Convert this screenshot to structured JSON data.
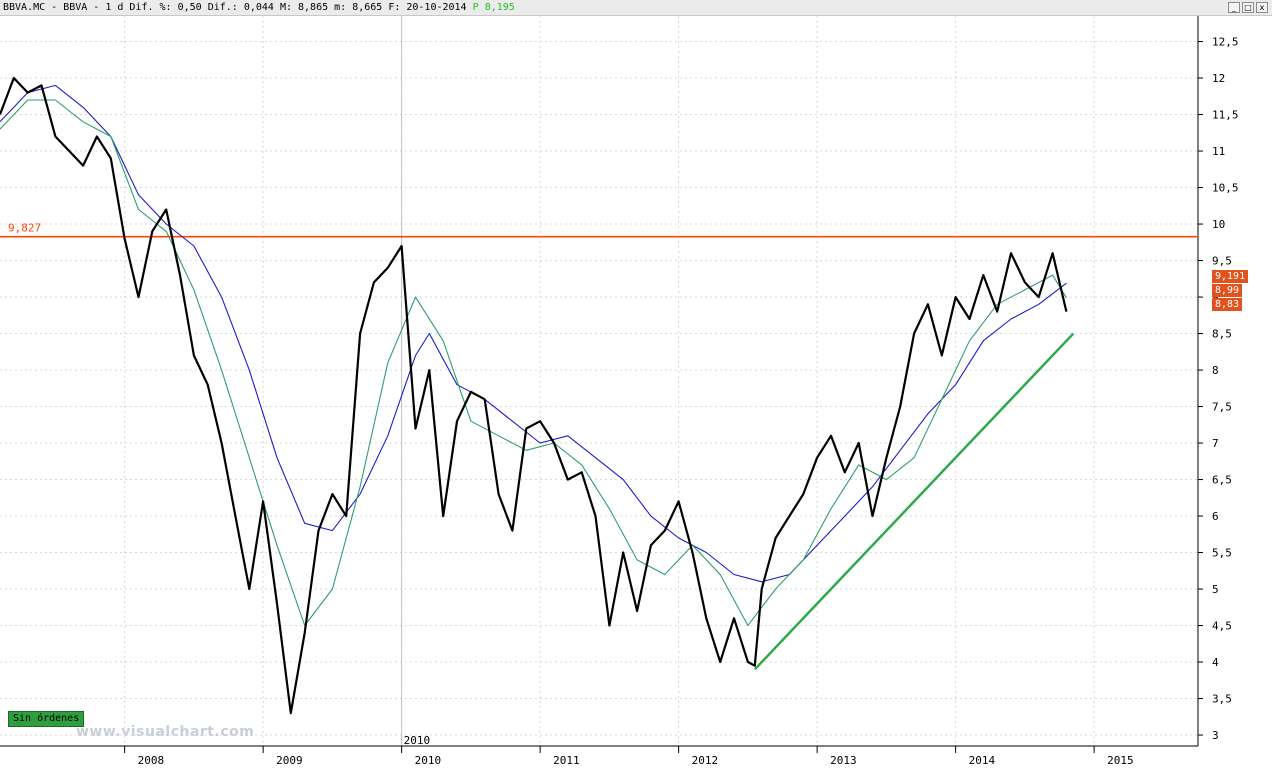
{
  "window": {
    "title_prefix": "BBVA.MC - BBVA -  1 d Dif. %: 0,50 Dif.: 0,044 M: 8,865 m: 8,665 F: 20-10-2014",
    "title_p_label": "P",
    "title_p_value": "8,195",
    "buttons": [
      "_",
      "□",
      "x"
    ]
  },
  "orders_badge": "Sin órdenes",
  "watermark": "www.visualchart.com",
  "price_tags": [
    "9,191",
    "8,99",
    "8,83"
  ],
  "year_marker_label": "2010",
  "colors": {
    "price": "#000000",
    "ma_short": "#2e9e6b",
    "ma_long": "#1c1ccc",
    "resistance": "#ff4400",
    "trendline": "#2eaa4a",
    "tag": "#e0531f"
  },
  "chart_data": {
    "type": "line",
    "title": "BBVA.MC - BBVA - 1 d",
    "x_ticks": [
      "2008",
      "2009",
      "2010",
      "2011",
      "2012",
      "2013",
      "2014",
      "2015"
    ],
    "x_tick_positions": [
      2008,
      2009,
      2010,
      2011,
      2012,
      2013,
      2014,
      2015
    ],
    "xlim": [
      2007.1,
      2015.75
    ],
    "y_ticks": [
      "3",
      "3,5",
      "4",
      "4,5",
      "5",
      "5,5",
      "6",
      "6,5",
      "7",
      "7,5",
      "8",
      "8,5",
      "9",
      "9,5",
      "10",
      "10,5",
      "11",
      "11,5",
      "12",
      "12,5"
    ],
    "y_tick_values": [
      3,
      3.5,
      4,
      4.5,
      5,
      5.5,
      6,
      6.5,
      7,
      7.5,
      8,
      8.5,
      9,
      9.5,
      10,
      10.5,
      11,
      11.5,
      12,
      12.5
    ],
    "ylim": [
      2.85,
      12.85
    ],
    "grid": true,
    "horizontal_line": {
      "value": 9.827,
      "label": "9,827"
    },
    "trendline": {
      "x": [
        2012.55,
        2014.85
      ],
      "y": [
        3.9,
        8.5
      ]
    },
    "series": [
      {
        "x": [
          2007.1,
          2007.2,
          2007.3,
          2007.4,
          2007.5,
          2007.6,
          2007.7,
          2007.8,
          2007.9,
          2008.0,
          2008.1,
          2008.2,
          2008.3,
          2008.4,
          2008.5,
          2008.6,
          2008.7,
          2008.8,
          2008.9,
          2009.0,
          2009.1,
          2009.2,
          2009.3,
          2009.4,
          2009.5,
          2009.6,
          2009.7,
          2009.8,
          2009.9,
          2010.0,
          2010.1,
          2010.2,
          2010.3,
          2010.4,
          2010.5,
          2010.6,
          2010.7,
          2010.8,
          2010.9,
          2011.0,
          2011.1,
          2011.2,
          2011.3,
          2011.4,
          2011.5,
          2011.6,
          2011.7,
          2011.8,
          2011.9,
          2012.0,
          2012.1,
          2012.2,
          2012.3,
          2012.4,
          2012.5,
          2012.55,
          2012.6,
          2012.7,
          2012.8,
          2012.9,
          2013.0,
          2013.1,
          2013.2,
          2013.3,
          2013.4,
          2013.5,
          2013.6,
          2013.7,
          2013.8,
          2013.9,
          2014.0,
          2014.1,
          2014.2,
          2014.3,
          2014.4,
          2014.5,
          2014.6,
          2014.7,
          2014.8
        ],
        "values": [
          11.5,
          12.0,
          11.8,
          11.9,
          11.2,
          11.0,
          10.8,
          11.2,
          10.9,
          9.8,
          9.0,
          9.9,
          10.2,
          9.3,
          8.2,
          7.8,
          7.0,
          6.0,
          5.0,
          6.2,
          4.8,
          3.3,
          4.4,
          5.8,
          6.3,
          6.0,
          8.5,
          9.2,
          9.4,
          9.7,
          7.2,
          8.0,
          6.0,
          7.3,
          7.7,
          7.6,
          6.3,
          5.8,
          7.2,
          7.3,
          7.0,
          6.5,
          6.6,
          6.0,
          4.5,
          5.5,
          4.7,
          5.6,
          5.8,
          6.2,
          5.5,
          4.6,
          4.0,
          4.6,
          4.0,
          3.95,
          5.0,
          5.7,
          6.0,
          6.3,
          6.8,
          7.1,
          6.6,
          7.0,
          6.0,
          6.8,
          7.5,
          8.5,
          8.9,
          8.2,
          9.0,
          8.7,
          9.3,
          8.8,
          9.6,
          9.2,
          9.0,
          9.6,
          8.8
        ]
      },
      {
        "x": [
          2007.1,
          2007.3,
          2007.5,
          2007.7,
          2007.9,
          2008.1,
          2008.3,
          2008.5,
          2008.7,
          2008.9,
          2009.1,
          2009.3,
          2009.5,
          2009.7,
          2009.9,
          2010.1,
          2010.3,
          2010.5,
          2010.7,
          2010.9,
          2011.1,
          2011.3,
          2011.5,
          2011.7,
          2011.9,
          2012.1,
          2012.3,
          2012.5,
          2012.7,
          2012.9,
          2013.1,
          2013.3,
          2013.5,
          2013.7,
          2013.9,
          2014.1,
          2014.3,
          2014.5,
          2014.7,
          2014.8
        ],
        "values": [
          11.3,
          11.7,
          11.7,
          11.4,
          11.2,
          10.2,
          9.9,
          9.1,
          8.0,
          6.8,
          5.6,
          4.5,
          5.0,
          6.4,
          8.1,
          9.0,
          8.4,
          7.3,
          7.1,
          6.9,
          7.0,
          6.7,
          6.1,
          5.4,
          5.2,
          5.6,
          5.2,
          4.5,
          5.0,
          5.4,
          6.1,
          6.7,
          6.5,
          6.8,
          7.6,
          8.4,
          8.9,
          9.1,
          9.3,
          8.99
        ]
      },
      {
        "x": [
          2007.1,
          2007.3,
          2007.5,
          2007.7,
          2007.9,
          2008.1,
          2008.3,
          2008.5,
          2008.7,
          2008.9,
          2009.1,
          2009.3,
          2009.5,
          2009.7,
          2009.9,
          2010.1,
          2010.2,
          2010.4,
          2010.6,
          2010.8,
          2011.0,
          2011.2,
          2011.4,
          2011.6,
          2011.8,
          2012.0,
          2012.2,
          2012.4,
          2012.6,
          2012.8,
          2013.0,
          2013.2,
          2013.4,
          2013.6,
          2013.8,
          2014.0,
          2014.2,
          2014.4,
          2014.6,
          2014.8
        ],
        "values": [
          11.4,
          11.8,
          11.9,
          11.6,
          11.2,
          10.4,
          10.0,
          9.7,
          9.0,
          8.0,
          6.8,
          5.9,
          5.8,
          6.3,
          7.1,
          8.2,
          8.5,
          7.8,
          7.6,
          7.3,
          7.0,
          7.1,
          6.8,
          6.5,
          6.0,
          5.7,
          5.5,
          5.2,
          5.1,
          5.2,
          5.6,
          6.0,
          6.4,
          6.9,
          7.4,
          7.8,
          8.4,
          8.7,
          8.9,
          9.19
        ]
      }
    ]
  }
}
